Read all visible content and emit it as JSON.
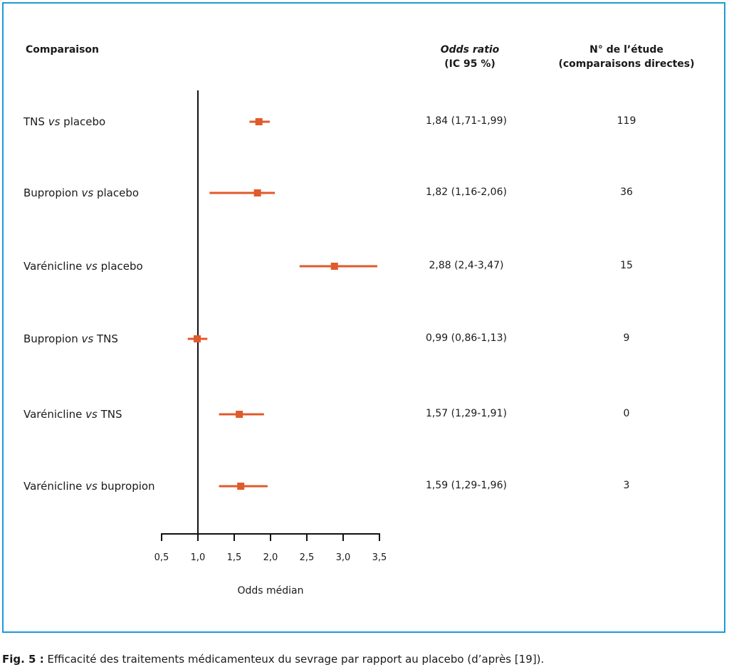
{
  "header": {
    "comparison": "Comparaison",
    "or_line1": "Odds ratio",
    "or_line2": "(IC 95 %)",
    "n_line1": "N° de l’étude",
    "n_line2": "(comparaisons directes)"
  },
  "rows": [
    {
      "a": "TNS",
      "vs": "vs",
      "b": "placebo",
      "or": "1,84 (1,71-1,99)",
      "n": "119"
    },
    {
      "a": "Bupropion",
      "vs": "vs",
      "b": "placebo",
      "or": "1,82 (1,16-2,06)",
      "n": "36"
    },
    {
      "a": "Varénicline",
      "vs": "vs",
      "b": "placebo",
      "or": "2,88 (2,4-3,47)",
      "n": "15"
    },
    {
      "a": "Bupropion",
      "vs": "vs",
      "b": "TNS",
      "or": "0,99 (0,86-1,13)",
      "n": "9"
    },
    {
      "a": "Varénicline",
      "vs": "vs",
      "b": "TNS",
      "or": "1,57 (1,29-1,91)",
      "n": "0"
    },
    {
      "a": "Varénicline",
      "vs": "vs",
      "b": "bupropion",
      "or": "1,59 (1,29-1,96)",
      "n": "3"
    }
  ],
  "caption": {
    "label": "Fig. 5 :",
    "text": "Efficacité des traitements médicamenteux du sevrage par rapport au placebo (d’après [19])."
  },
  "chart_data": {
    "type": "forest",
    "xlabel": "Odds médian",
    "xlim": [
      0.5,
      3.5
    ],
    "ticks": [
      0.5,
      1.0,
      1.5,
      2.0,
      2.5,
      3.0,
      3.5
    ],
    "tick_labels": [
      "0,5",
      "1,0",
      "1,5",
      "2,0",
      "2,5",
      "3,0",
      "3,5"
    ],
    "reference_line": 1.0,
    "marker_color": "#e05a2b",
    "points": [
      {
        "label": "TNS vs placebo",
        "or": 1.84,
        "low": 1.71,
        "high": 1.99
      },
      {
        "label": "Bupropion vs placebo",
        "or": 1.82,
        "low": 1.16,
        "high": 2.06
      },
      {
        "label": "Varénicline vs placebo",
        "or": 2.88,
        "low": 2.4,
        "high": 3.47
      },
      {
        "label": "Bupropion vs TNS",
        "or": 0.99,
        "low": 0.86,
        "high": 1.13
      },
      {
        "label": "Varénicline vs TNS",
        "or": 1.57,
        "low": 1.29,
        "high": 1.91
      },
      {
        "label": "Varénicline vs bupropion",
        "or": 1.59,
        "low": 1.29,
        "high": 1.96
      }
    ]
  }
}
